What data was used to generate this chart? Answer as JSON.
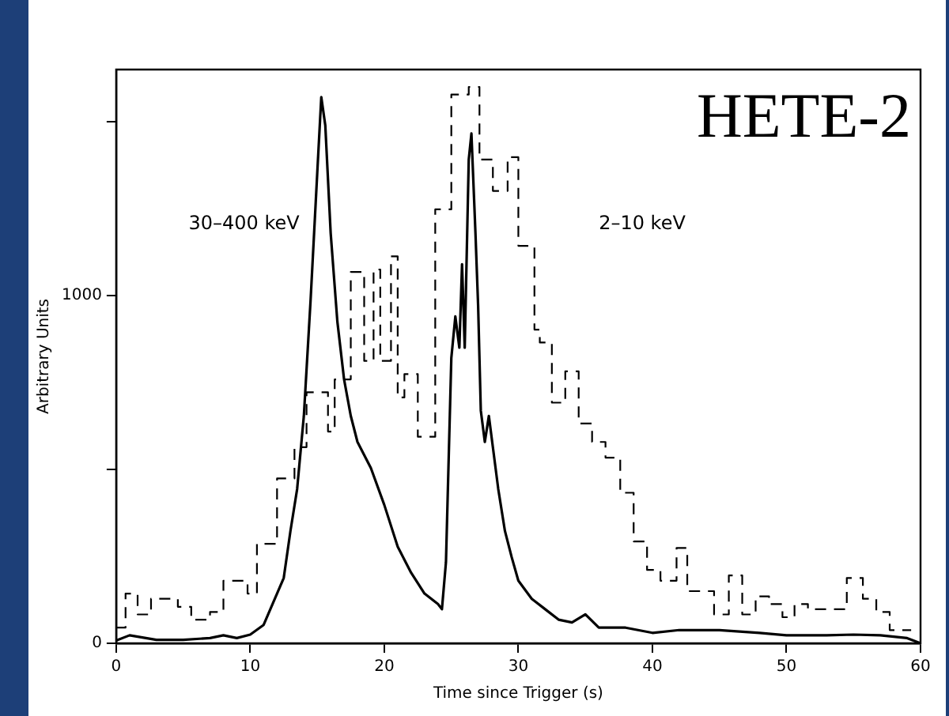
{
  "chart_data": {
    "type": "line",
    "xlabel": "Time since Trigger (s)",
    "ylabel": "Arbitrary Units",
    "xlim": [
      0,
      60
    ],
    "xticks": [
      0,
      10,
      20,
      30,
      40,
      50,
      60
    ],
    "ylim": [
      0,
      1650
    ],
    "yticks": [
      0,
      {
        "value": 500,
        "label": null
      },
      1000,
      {
        "value": 1500,
        "label": null
      }
    ],
    "grid": false,
    "legend": false,
    "marker": "none",
    "annotations": [
      "HETE-2",
      "30–400 keV",
      "2–10 keV"
    ],
    "series": [
      {
        "color": "#000000",
        "line_style": "solid",
        "x": [
          0,
          1,
          3,
          5,
          7,
          8,
          9,
          10,
          11,
          12,
          12.5,
          13,
          13.5,
          14,
          14.5,
          15,
          15.3,
          15.6,
          16,
          16.5,
          17,
          17.5,
          18,
          19,
          20,
          21,
          22,
          23,
          24,
          24.3,
          24.6,
          25,
          25.3,
          25.6,
          25.8,
          26,
          26.3,
          26.5,
          26.8,
          27,
          27.2,
          27.5,
          27.8,
          28.1,
          28.5,
          29,
          29.5,
          30,
          31,
          32,
          33,
          34,
          35,
          36,
          38,
          40,
          42,
          45,
          48,
          50,
          53,
          55,
          57,
          59,
          60
        ],
        "values": [
          8,
          23,
          10,
          10,
          15,
          23,
          15,
          25,
          53,
          143,
          188,
          323,
          444,
          654,
          985,
          1353,
          1571,
          1489,
          1180,
          925,
          759,
          654,
          579,
          504,
          398,
          278,
          203,
          143,
          113,
          98,
          233,
          820,
          940,
          850,
          1090,
          850,
          1391,
          1466,
          1180,
          970,
          669,
          579,
          654,
          564,
          444,
          323,
          248,
          180,
          128,
          98,
          68,
          60,
          83,
          45,
          45,
          30,
          38,
          38,
          30,
          23,
          23,
          25,
          23,
          15,
          0
        ]
      },
      {
        "type": "step",
        "color": "#000000",
        "line_style": "dashed",
        "x": [
          0,
          0.7,
          1.6,
          2.6,
          4.6,
          5.6,
          7,
          8,
          9.8,
          10.5,
          12,
          13.3,
          14.2,
          15.8,
          16.3,
          17.5,
          18.5,
          19.2,
          19.7,
          20.5,
          21,
          21.5,
          22.5,
          23.8,
          25,
          26.3,
          27.1,
          28.1,
          29.2,
          30,
          31.2,
          31.6,
          32.5,
          33.5,
          34.5,
          35.5,
          36.5,
          37.6,
          38.6,
          39.6,
          40.6,
          41.8,
          42.6,
          44.6,
          45.7,
          46.7,
          47.7,
          48.7,
          49.7,
          50.6,
          51.6,
          54.5,
          55.7,
          56.7,
          57.7,
          58.7,
          59.3
        ],
        "values": [
          100,
          45,
          143,
          83,
          128,
          105,
          68,
          90,
          180,
          143,
          286,
          474,
          564,
          722,
          609,
          759,
          1068,
          812,
          1075,
          812,
          1113,
          707,
          774,
          594,
          1248,
          1578,
          1600,
          1391,
          1301,
          1398,
          1143,
          902,
          865,
          692,
          782,
          632,
          579,
          534,
          433,
          293,
          211,
          180,
          274,
          150,
          83,
          195,
          83,
          135,
          113,
          75,
          113,
          98,
          188,
          128,
          90,
          38,
          38
        ]
      }
    ]
  }
}
